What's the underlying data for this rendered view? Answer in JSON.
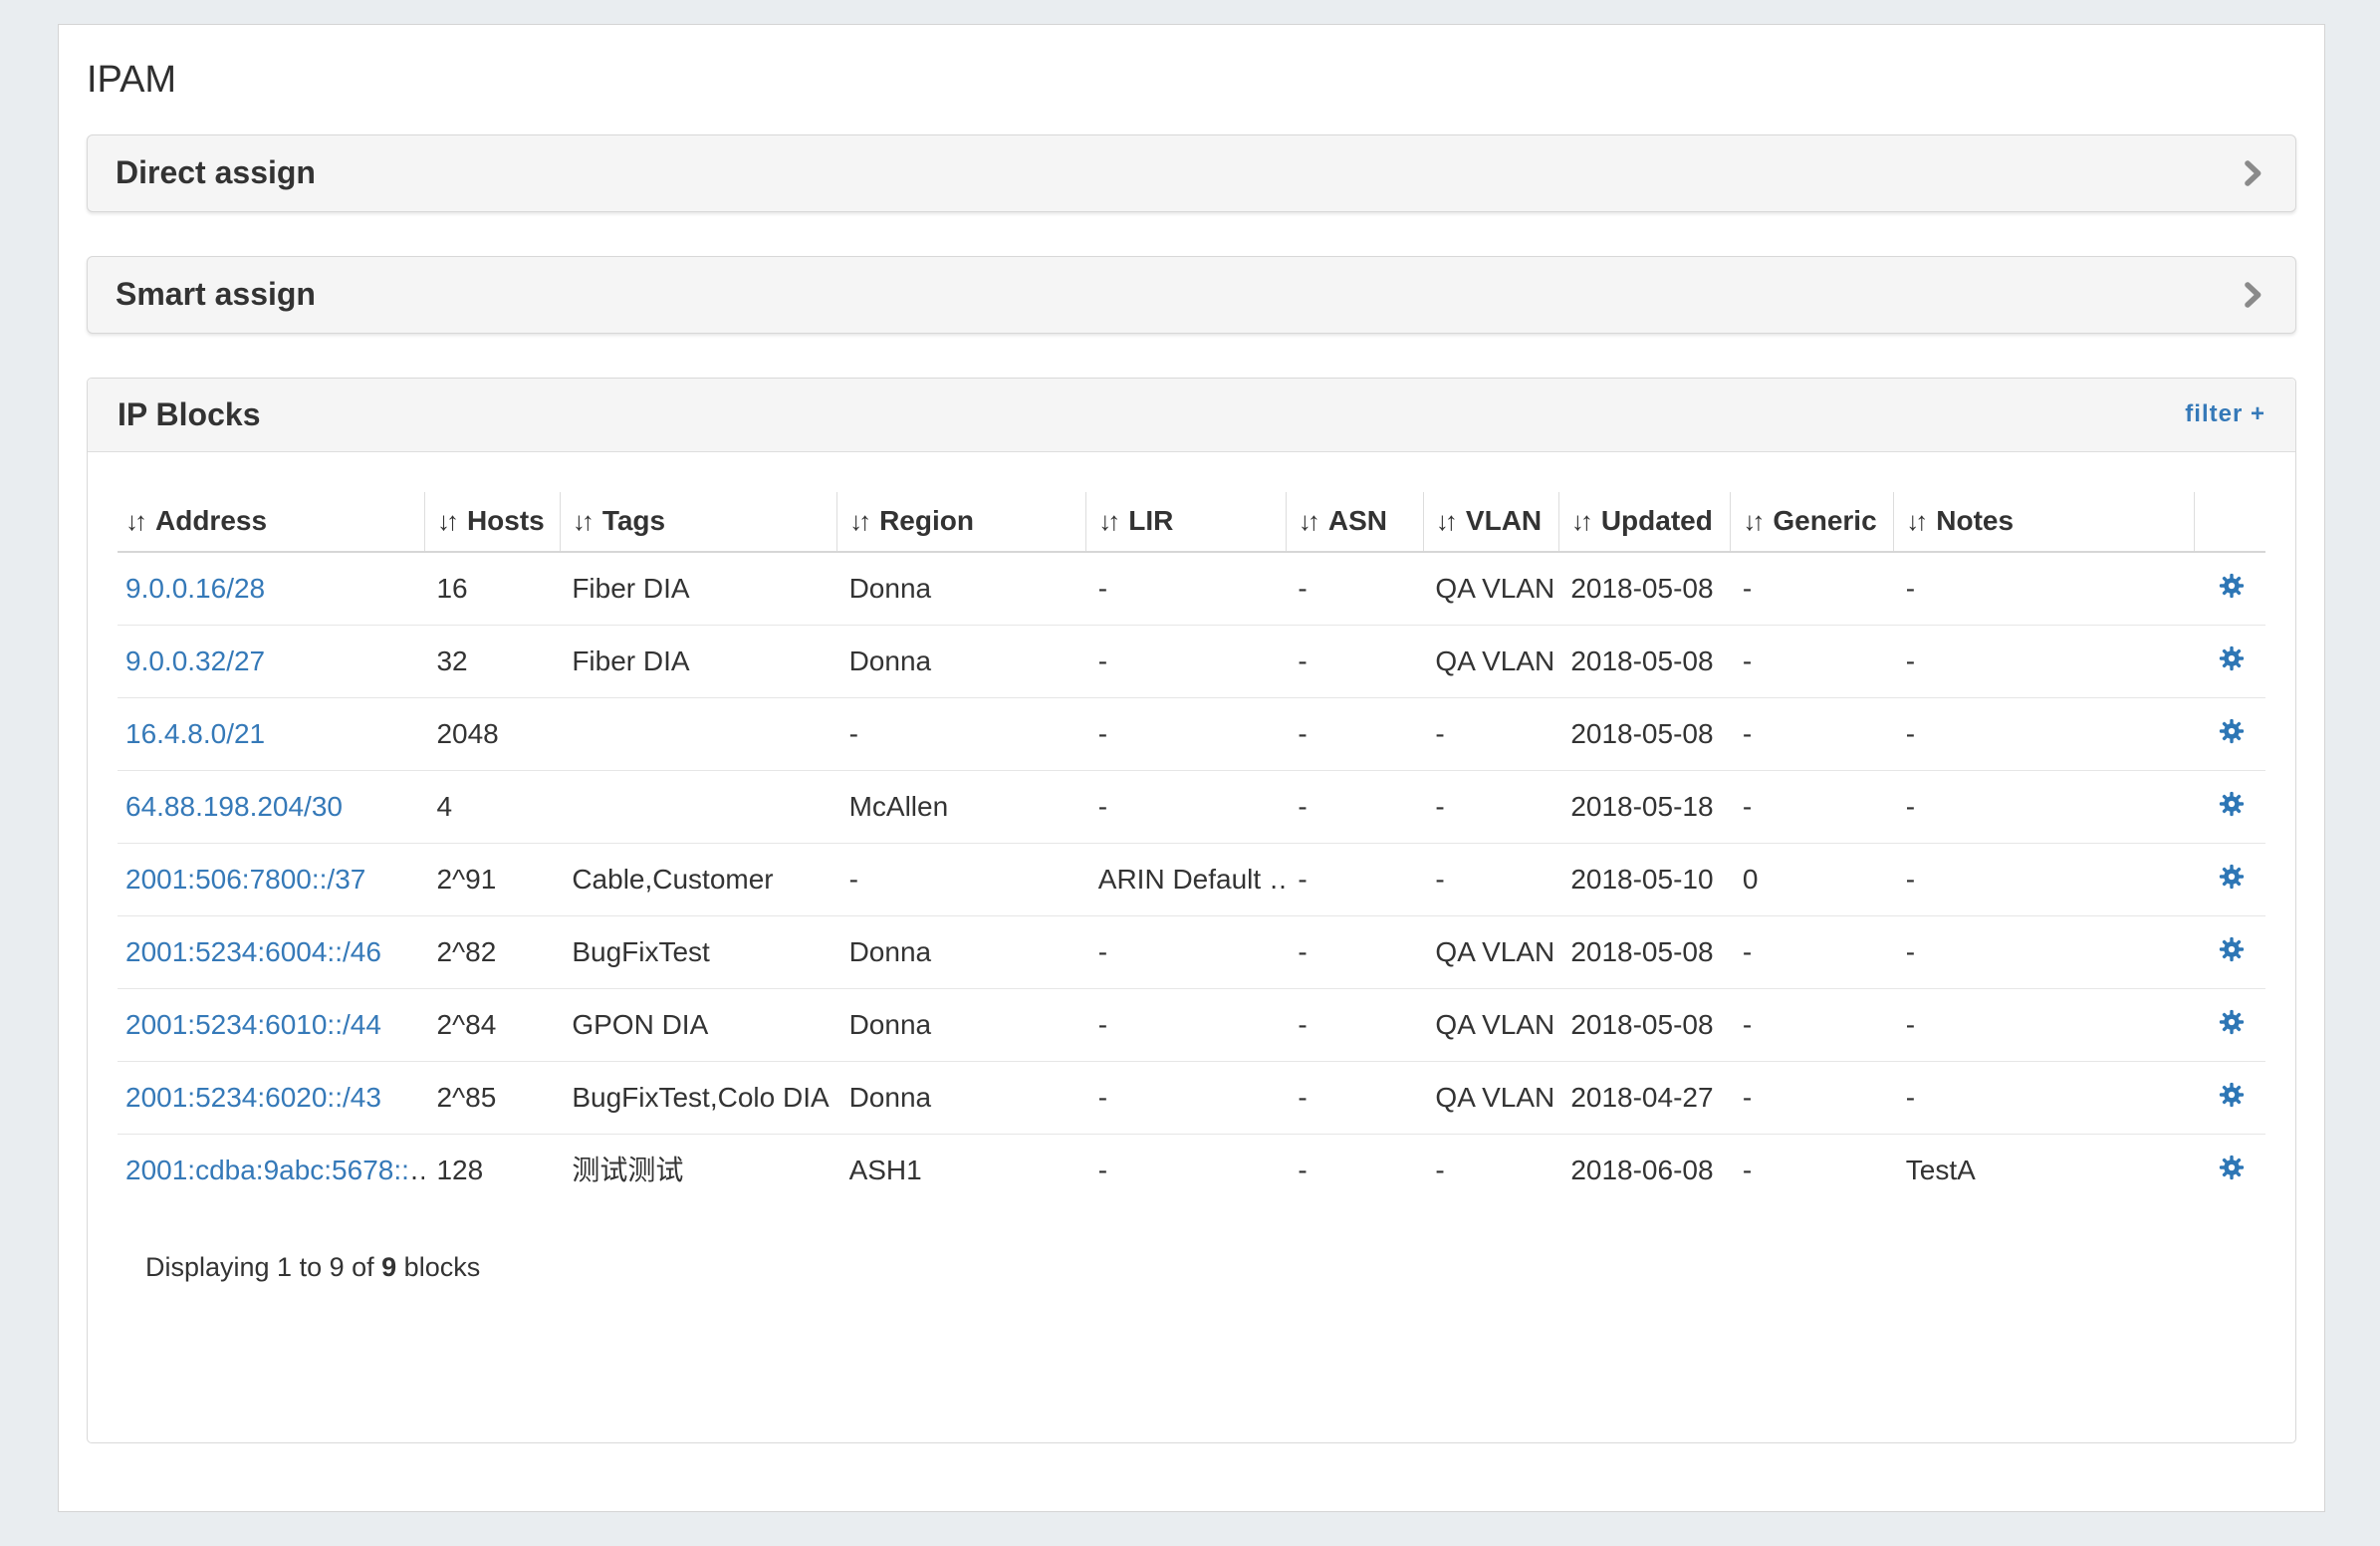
{
  "page": {
    "title": "IPAM"
  },
  "panels": {
    "direct_assign": {
      "label": "Direct assign"
    },
    "smart_assign": {
      "label": "Smart assign"
    }
  },
  "ip_blocks": {
    "title": "IP Blocks",
    "filter_label": "filter +",
    "sort_icon": "↓↑",
    "columns": [
      "Address",
      "Hosts",
      "Tags",
      "Region",
      "LIR",
      "ASN",
      "VLAN",
      "Updated",
      "Generic",
      "Notes"
    ],
    "rows": [
      {
        "address": "9.0.0.16/28",
        "truncated": false,
        "hosts": "16",
        "tags": "Fiber DIA",
        "region": "Donna",
        "lir": "-",
        "asn": "-",
        "vlan": "QA VLAN",
        "updated": "2018-05-08",
        "generic": "-",
        "notes": "-"
      },
      {
        "address": "9.0.0.32/27",
        "truncated": false,
        "hosts": "32",
        "tags": "Fiber DIA",
        "region": "Donna",
        "lir": "-",
        "asn": "-",
        "vlan": "QA VLAN",
        "updated": "2018-05-08",
        "generic": "-",
        "notes": "-"
      },
      {
        "address": "16.4.8.0/21",
        "truncated": false,
        "hosts": "2048",
        "tags": "",
        "region": "-",
        "lir": "-",
        "asn": "-",
        "vlan": "-",
        "updated": "2018-05-08",
        "generic": "-",
        "notes": "-"
      },
      {
        "address": "64.88.198.204/30",
        "truncated": false,
        "hosts": "4",
        "tags": "",
        "region": "McAllen",
        "lir": "-",
        "asn": "-",
        "vlan": "-",
        "updated": "2018-05-18",
        "generic": "-",
        "notes": "-"
      },
      {
        "address": "2001:506:7800::/37",
        "truncated": false,
        "hosts": "2^91",
        "tags": "Cable,Customer",
        "region": "-",
        "lir": "ARIN Default …",
        "asn": "-",
        "vlan": "-",
        "updated": "2018-05-10",
        "generic": "0",
        "notes": "-"
      },
      {
        "address": "2001:5234:6004::/46",
        "truncated": false,
        "hosts": "2^82",
        "tags": "BugFixTest",
        "region": "Donna",
        "lir": "-",
        "asn": "-",
        "vlan": "QA VLAN",
        "updated": "2018-05-08",
        "generic": "-",
        "notes": "-"
      },
      {
        "address": "2001:5234:6010::/44",
        "truncated": false,
        "hosts": "2^84",
        "tags": "GPON DIA",
        "region": "Donna",
        "lir": "-",
        "asn": "-",
        "vlan": "QA VLAN",
        "updated": "2018-05-08",
        "generic": "-",
        "notes": "-"
      },
      {
        "address": "2001:5234:6020::/43",
        "truncated": false,
        "hosts": "2^85",
        "tags": "BugFixTest,Colo DIA",
        "region": "Donna",
        "lir": "-",
        "asn": "-",
        "vlan": "QA VLAN",
        "updated": "2018-04-27",
        "generic": "-",
        "notes": "-"
      },
      {
        "address": "2001:cdba:9abc:5678::",
        "truncated": true,
        "hosts": "128",
        "tags": "测试测试",
        "region": "ASH1",
        "lir": "-",
        "asn": "-",
        "vlan": "-",
        "updated": "2018-06-08",
        "generic": "-",
        "notes": "TestA"
      }
    ],
    "footer": {
      "prefix": "Displaying 1 to 9 of ",
      "total": "9",
      "suffix": " blocks"
    }
  },
  "colors": {
    "link": "#3579b8",
    "gear": "#2d76b5",
    "panel_header_bg": "#f5f5f5",
    "page_bg": "#e9edf0"
  }
}
